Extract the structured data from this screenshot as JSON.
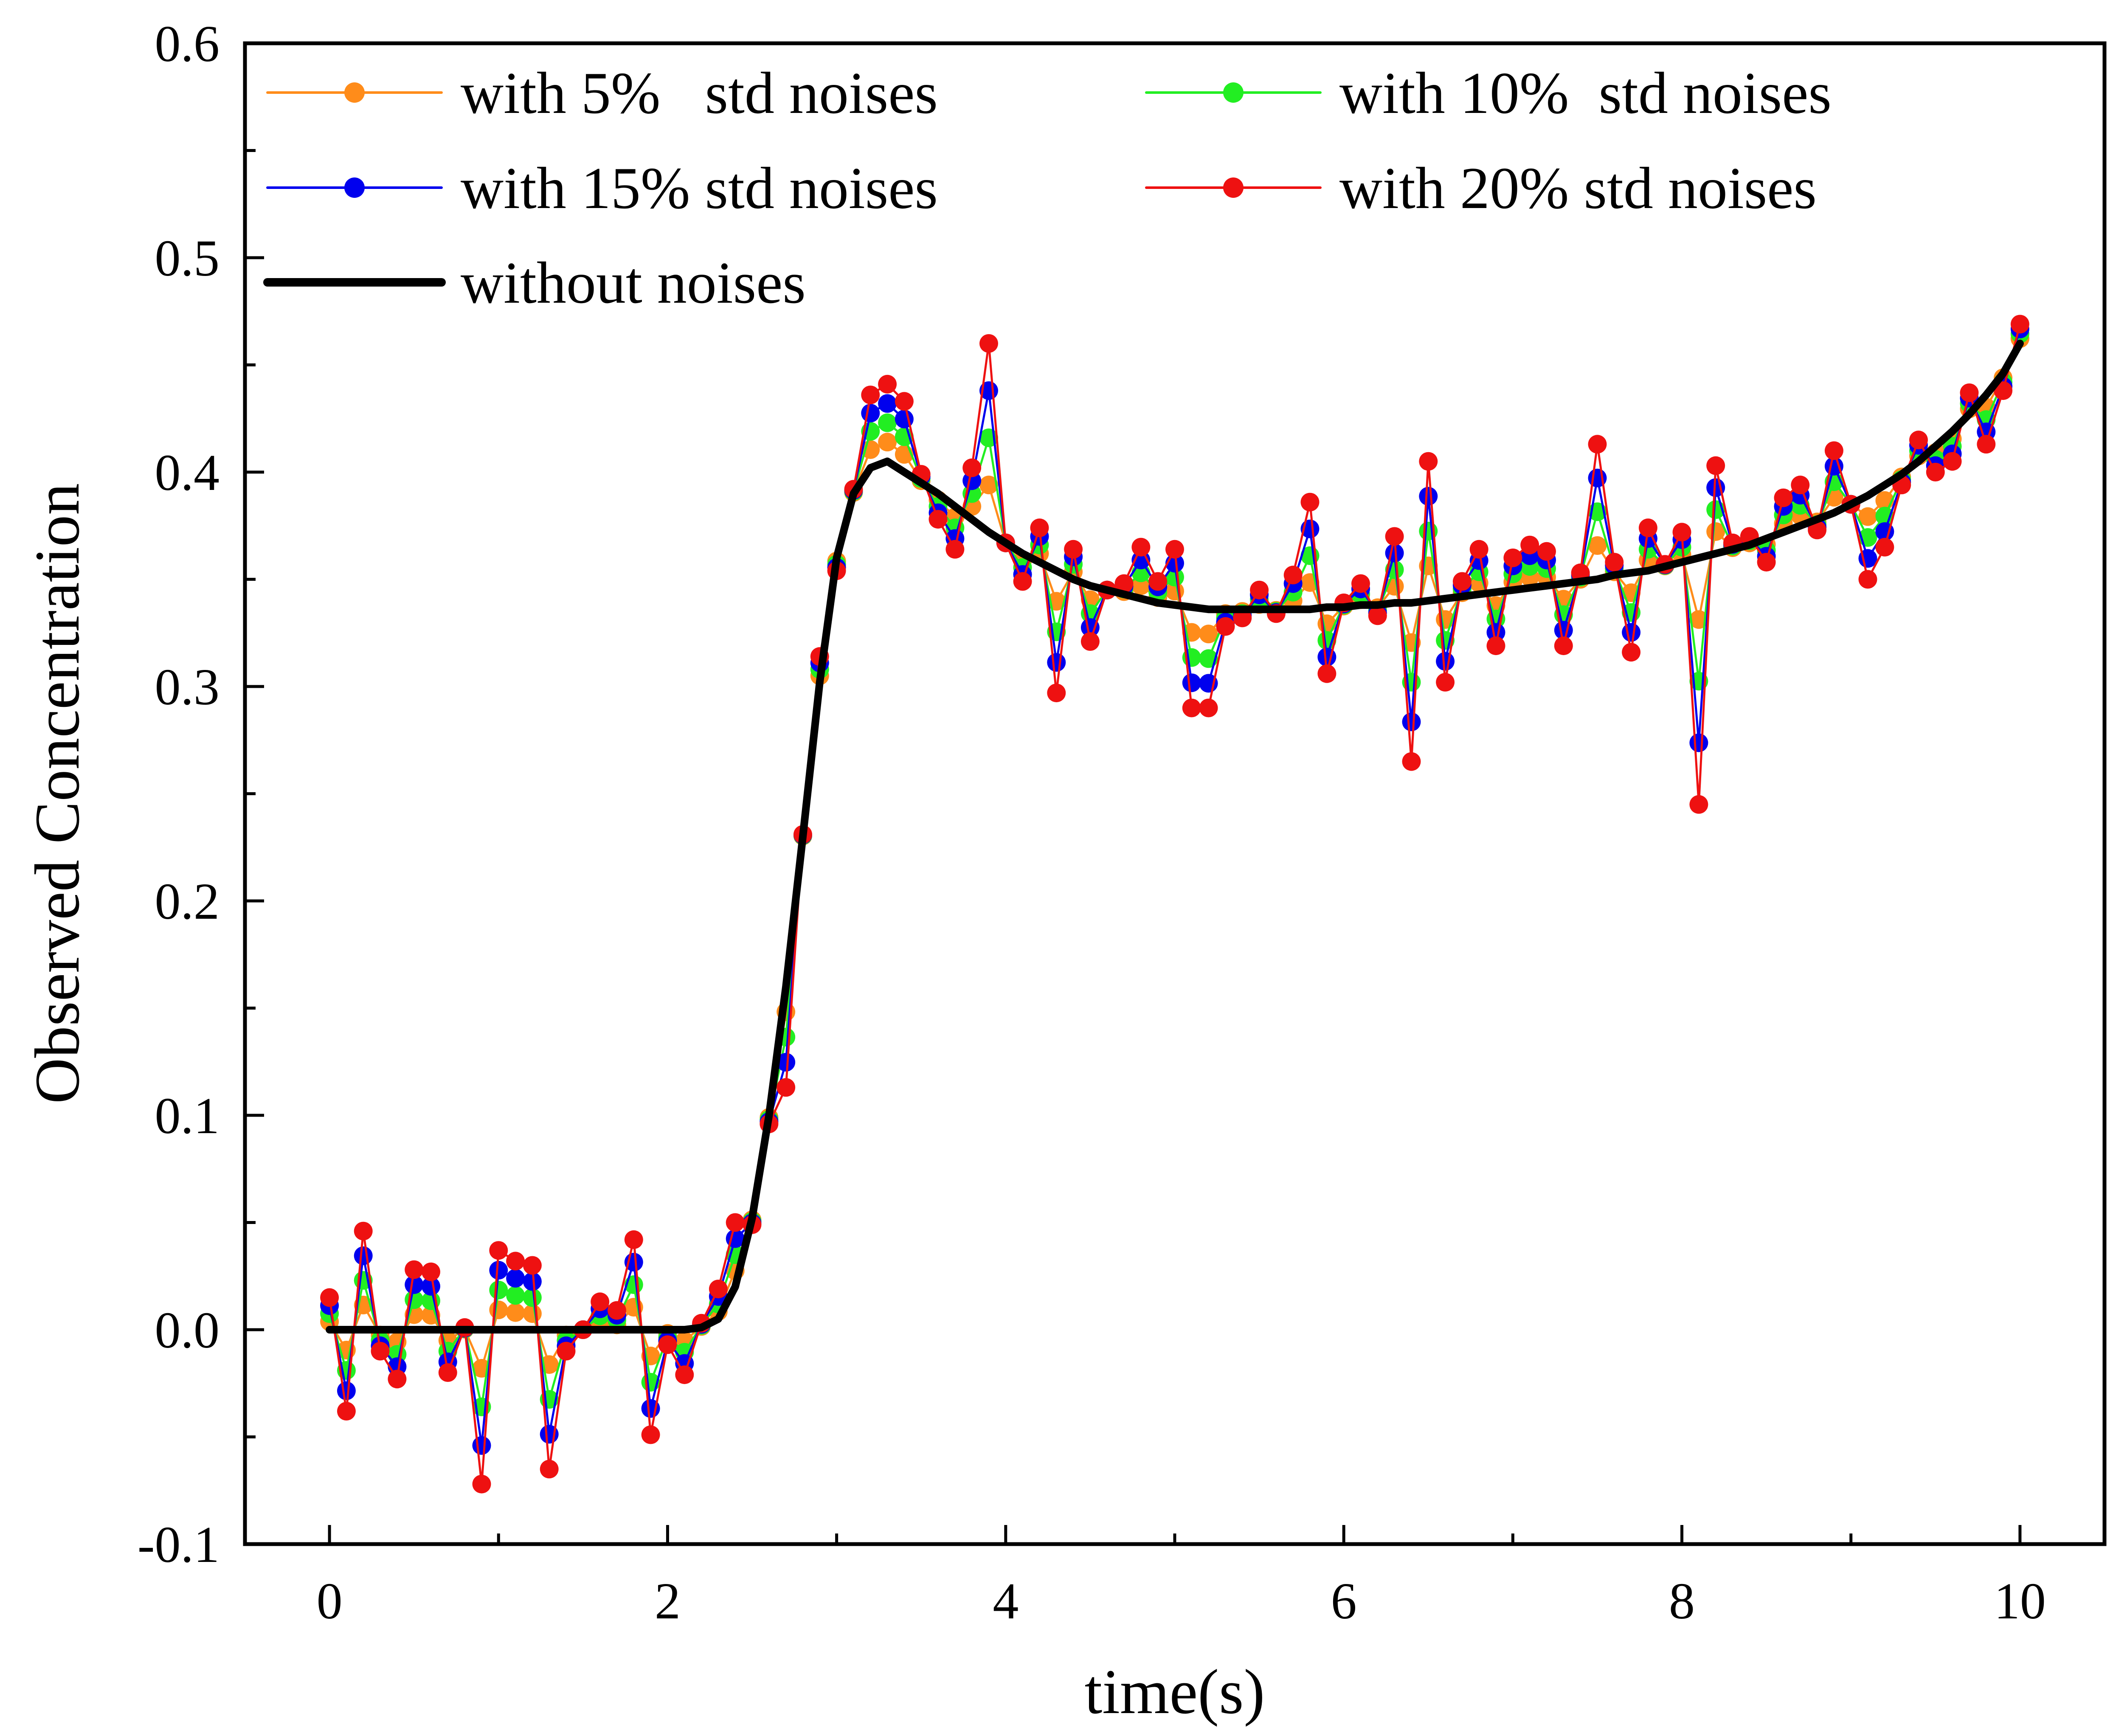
{
  "chart_data": {
    "type": "line",
    "xlabel": "time(s)",
    "ylabel": "Observed Concentration",
    "xlim": [
      -0.5,
      10.5
    ],
    "ylim": [
      -0.1,
      0.6
    ],
    "xticks": [
      "0",
      "2",
      "4",
      "6",
      "8",
      "10"
    ],
    "yticks": [
      "-0.1",
      "0.0",
      "0.1",
      "0.2",
      "0.3",
      "0.4",
      "0.5",
      "0.6"
    ],
    "grid": false,
    "legend_position": "top-left",
    "x": [
      0.0,
      0.1,
      0.2,
      0.3,
      0.4,
      0.5,
      0.6,
      0.7,
      0.8,
      0.9,
      1.0,
      1.1,
      1.2,
      1.3,
      1.4,
      1.5,
      1.6,
      1.7,
      1.8,
      1.9,
      2.0,
      2.1,
      2.2,
      2.3,
      2.4,
      2.5,
      2.6,
      2.7,
      2.8,
      2.9,
      3.0,
      3.1,
      3.2,
      3.3,
      3.4,
      3.5,
      3.6,
      3.7,
      3.8,
      3.9,
      4.0,
      4.1,
      4.2,
      4.3,
      4.4,
      4.5,
      4.6,
      4.7,
      4.8,
      4.9,
      5.0,
      5.1,
      5.2,
      5.3,
      5.4,
      5.5,
      5.6,
      5.7,
      5.8,
      5.9,
      6.0,
      6.1,
      6.2,
      6.3,
      6.4,
      6.5,
      6.6,
      6.7,
      6.8,
      6.9,
      7.0,
      7.1,
      7.2,
      7.3,
      7.4,
      7.5,
      7.6,
      7.7,
      7.8,
      7.9,
      8.0,
      8.1,
      8.2,
      8.3,
      8.4,
      8.5,
      8.6,
      8.7,
      8.8,
      8.9,
      9.0,
      9.1,
      9.2,
      9.3,
      9.4,
      9.5,
      9.6,
      9.7,
      9.8,
      9.9,
      10.0
    ],
    "noise": [
      0.015,
      -0.038,
      0.046,
      -0.01,
      -0.023,
      0.028,
      0.027,
      -0.02,
      0.001,
      -0.072,
      0.037,
      0.032,
      0.03,
      -0.065,
      -0.01,
      0.0,
      0.013,
      0.009,
      0.042,
      -0.049,
      -0.007,
      -0.021,
      0.002,
      0.014,
      0.03,
      -0.003,
      -0.004,
      -0.047,
      0.001,
      0.012,
      -0.006,
      0.002,
      0.034,
      0.036,
      0.033,
      0.004,
      -0.012,
      -0.02,
      0.024,
      0.088,
      0.0,
      -0.013,
      0.016,
      -0.057,
      0.014,
      -0.026,
      0.0,
      0.005,
      0.024,
      0.01,
      0.026,
      -0.047,
      -0.046,
      -0.008,
      -0.004,
      0.009,
      -0.002,
      0.016,
      0.05,
      -0.031,
      0.002,
      0.01,
      -0.005,
      0.031,
      -0.074,
      0.065,
      -0.039,
      0.007,
      0.021,
      -0.025,
      0.015,
      0.02,
      0.016,
      -0.029,
      0.004,
      0.063,
      0.006,
      -0.037,
      0.02,
      0.001,
      0.014,
      -0.115,
      0.041,
      0.003,
      0.004,
      -0.011,
      0.016,
      0.019,
      -0.005,
      0.029,
      0.0,
      -0.039,
      -0.029,
      -0.005,
      0.01,
      -0.012,
      -0.014,
      0.01,
      -0.023,
      -0.008,
      0.009
    ],
    "series": [
      {
        "name": "with 5%   std noises",
        "color": "#FF8C1A",
        "noise_scale": 0.25,
        "markers": true
      },
      {
        "name": "with 10%  std noises",
        "color": "#22EE22",
        "noise_scale": 0.5,
        "markers": true
      },
      {
        "name": "with 15% std noises",
        "color": "#0000EE",
        "noise_scale": 0.75,
        "markers": true
      },
      {
        "name": "with 20% std noises",
        "color": "#EE1111",
        "noise_scale": 1.0,
        "markers": true
      },
      {
        "name": "without noises",
        "color": "#000000",
        "noise_scale": 0.0,
        "markers": false,
        "values": [
          0.0,
          0.0,
          0.0,
          0.0,
          0.0,
          0.0,
          0.0,
          0.0,
          0.0,
          0.0,
          0.0,
          0.0,
          0.0,
          0.0,
          0.0,
          0.0,
          0.0,
          0.0,
          0.0,
          0.0,
          0.0,
          0.0,
          0.001,
          0.005,
          0.02,
          0.052,
          0.1,
          0.16,
          0.23,
          0.302,
          0.36,
          0.39,
          0.402,
          0.405,
          0.4,
          0.395,
          0.39,
          0.384,
          0.378,
          0.372,
          0.367,
          0.362,
          0.358,
          0.354,
          0.35,
          0.347,
          0.345,
          0.343,
          0.341,
          0.339,
          0.338,
          0.337,
          0.336,
          0.336,
          0.336,
          0.336,
          0.336,
          0.336,
          0.336,
          0.337,
          0.337,
          0.338,
          0.338,
          0.339,
          0.339,
          0.34,
          0.341,
          0.342,
          0.343,
          0.344,
          0.345,
          0.346,
          0.347,
          0.348,
          0.349,
          0.35,
          0.352,
          0.353,
          0.354,
          0.356,
          0.358,
          0.36,
          0.362,
          0.364,
          0.366,
          0.369,
          0.372,
          0.375,
          0.378,
          0.381,
          0.385,
          0.389,
          0.394,
          0.399,
          0.405,
          0.412,
          0.419,
          0.427,
          0.436,
          0.446,
          0.46
        ]
      }
    ]
  }
}
